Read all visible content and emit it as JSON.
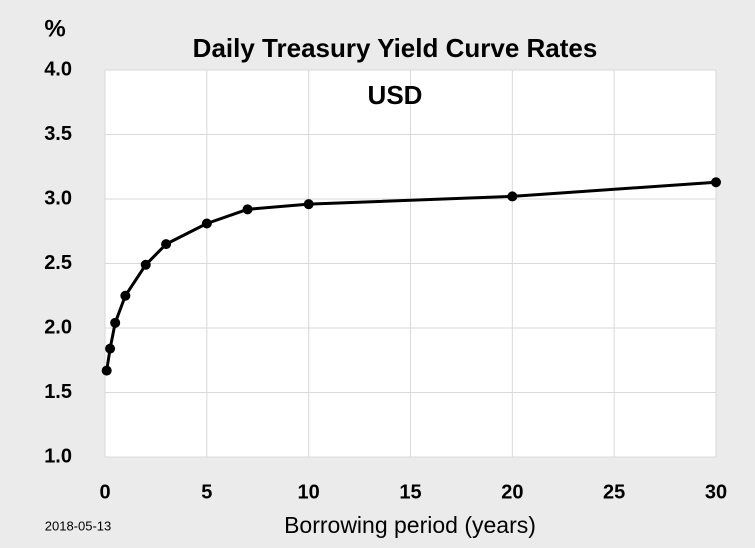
{
  "chart_data": {
    "type": "line",
    "title": "Daily Treasury Yield Curve Rates",
    "subtitle": "USD",
    "y_axis_label": "%",
    "x_axis_label": "Borrowing period (years)",
    "date_note": "2018-05-13",
    "x": [
      0.083,
      0.25,
      0.5,
      1,
      2,
      3,
      5,
      7,
      10,
      20,
      30
    ],
    "series": [
      {
        "name": "USD",
        "color": "#000000",
        "values": [
          1.67,
          1.84,
          2.04,
          2.25,
          2.49,
          2.65,
          2.81,
          2.92,
          2.96,
          3.02,
          3.13
        ]
      }
    ],
    "xlim": [
      0,
      30
    ],
    "xticks": [
      0,
      5,
      10,
      15,
      20,
      25,
      30
    ],
    "ylim": [
      1,
      4
    ],
    "yticks": [
      {
        "value": 1,
        "label": "1.0"
      },
      {
        "value": 1.5,
        "label": "1.5"
      },
      {
        "value": 2,
        "label": "2.0"
      },
      {
        "value": 2.5,
        "label": "2.5"
      },
      {
        "value": 3,
        "label": "3.0"
      },
      {
        "value": 3.5,
        "label": "3.5"
      },
      {
        "value": 4,
        "label": "4.0"
      }
    ],
    "grid": true
  }
}
